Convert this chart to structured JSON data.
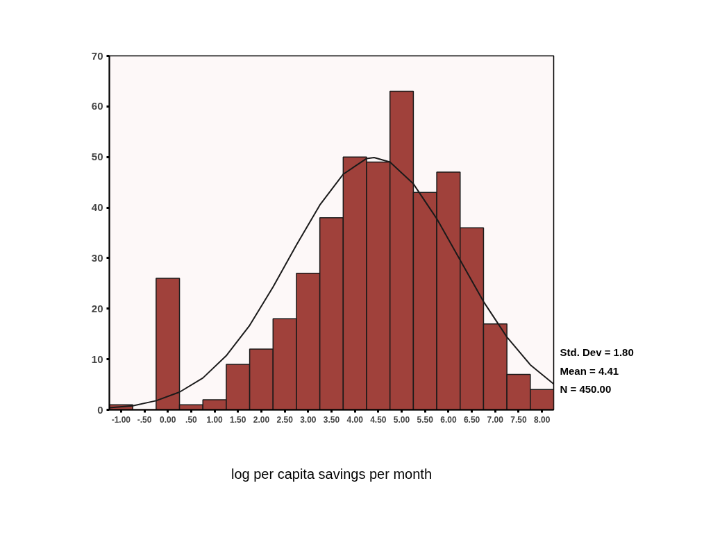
{
  "chart_data": {
    "type": "histogram",
    "xlabel": "log per capita savings per month",
    "bins": [
      -1.25,
      -0.75,
      -0.25,
      0.25,
      0.75,
      1.25,
      1.75,
      2.25,
      2.75,
      3.25,
      3.75,
      4.25,
      4.75,
      5.25,
      5.75,
      6.25,
      6.75,
      7.25,
      7.75,
      8.25
    ],
    "values": [
      1,
      0,
      26,
      1,
      2,
      9,
      12,
      18,
      27,
      38,
      50,
      49,
      63,
      43,
      47,
      36,
      17,
      7,
      4
    ],
    "color": "#a0413b",
    "series": [
      {
        "type": "line",
        "color": "#1a1a1a",
        "x": [
          -1.25,
          -0.75,
          -0.25,
          0.25,
          0.75,
          1.25,
          1.75,
          2.25,
          2.75,
          3.25,
          3.75,
          4.25,
          4.41,
          4.75,
          5.25,
          5.75,
          6.25,
          6.75,
          7.25,
          7.75,
          8.25
        ],
        "values": [
          0.4,
          0.8,
          1.8,
          3.5,
          6.3,
          10.7,
          16.7,
          24.3,
          32.6,
          40.5,
          46.6,
          49.7,
          49.9,
          49.0,
          44.7,
          37.8,
          29.6,
          21.4,
          14.4,
          8.9,
          5.1
        ]
      }
    ],
    "xlim": [
      -1.25,
      8.25
    ],
    "ylim": [
      0,
      70
    ],
    "xticks": [
      {
        "value": -1,
        "label": "-1.00"
      },
      {
        "value": -0.5,
        "label": "-.50"
      },
      {
        "value": 0,
        "label": "0.00"
      },
      {
        "value": 0.5,
        "label": ".50"
      },
      {
        "value": 1,
        "label": "1.00"
      },
      {
        "value": 1.5,
        "label": "1.50"
      },
      {
        "value": 2,
        "label": "2.00"
      },
      {
        "value": 2.5,
        "label": "2.50"
      },
      {
        "value": 3,
        "label": "3.00"
      },
      {
        "value": 3.5,
        "label": "3.50"
      },
      {
        "value": 4,
        "label": "4.00"
      },
      {
        "value": 4.5,
        "label": "4.50"
      },
      {
        "value": 5,
        "label": "5.00"
      },
      {
        "value": 5.5,
        "label": "5.50"
      },
      {
        "value": 6,
        "label": "6.00"
      },
      {
        "value": 6.5,
        "label": "6.50"
      },
      {
        "value": 7,
        "label": "7.00"
      },
      {
        "value": 7.5,
        "label": "7.50"
      },
      {
        "value": 8,
        "label": "8.00"
      }
    ],
    "yticks": [
      0,
      10,
      20,
      30,
      40,
      50,
      60,
      70
    ],
    "annotations": [
      "Std. Dev = 1.80",
      "Mean = 4.41",
      "N = 450.00"
    ],
    "grid": false
  }
}
